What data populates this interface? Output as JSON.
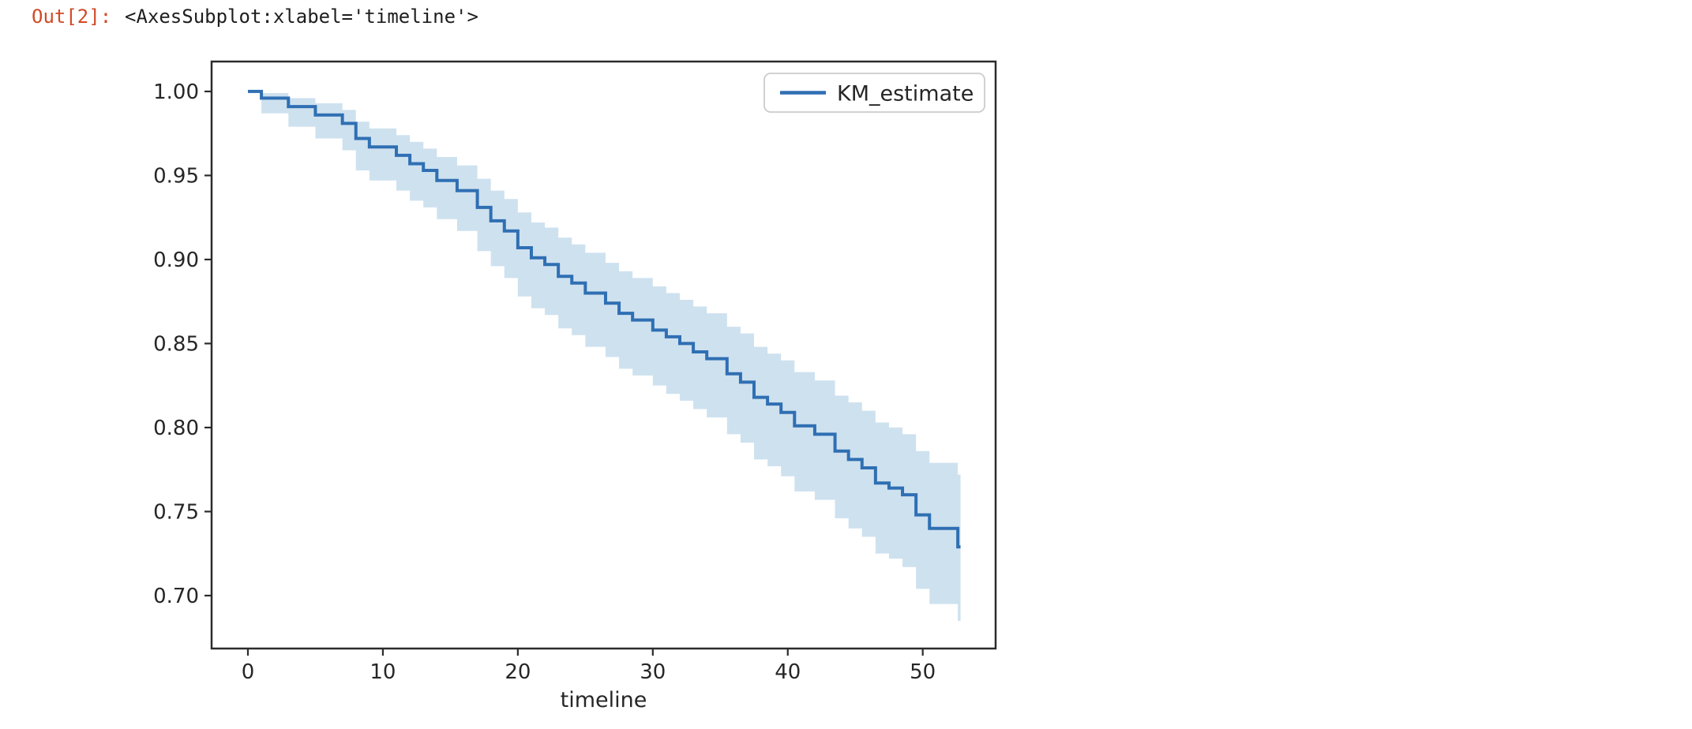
{
  "notebook": {
    "out_prompt": "Out[2]:",
    "repr_text": "<AxesSubplot:xlabel='timeline'>"
  },
  "colors": {
    "background": "#ffffff",
    "prompt": "#d04a26",
    "text": "#1e1e1e",
    "spine": "#2b2b2b",
    "tick": "#2b2b2b",
    "label": "#262626",
    "legend_border": "#cccccc"
  },
  "chart_data": {
    "type": "line",
    "subtype": "kaplan-meier-step",
    "title": "",
    "xlabel": "timeline",
    "ylabel": "",
    "grid": false,
    "legend": {
      "position": "upper right",
      "entries": [
        "KM_estimate"
      ]
    },
    "xlim": [
      -2.69,
      55.4
    ],
    "ylim": [
      0.6685,
      1.0178
    ],
    "x_ticks": [
      0,
      10,
      20,
      30,
      40,
      50
    ],
    "y_ticks": [
      1.0,
      0.95,
      0.9,
      0.85,
      0.8,
      0.75,
      0.7
    ],
    "x_end": 52.8,
    "series": [
      {
        "name": "KM_estimate",
        "color": "#2f6fb3",
        "band_color": "#1f77b4",
        "band_opacity": 0.22,
        "x": [
          0,
          1,
          3,
          5,
          7,
          8,
          9,
          11,
          12,
          13,
          14,
          15.5,
          17,
          18,
          19,
          20,
          21,
          22,
          23,
          24,
          25,
          26.5,
          27.5,
          28.5,
          30,
          31,
          32,
          33,
          34,
          35.5,
          36.5,
          37.5,
          38.5,
          39.5,
          40.5,
          42,
          43.5,
          44.5,
          45.5,
          46.5,
          47.5,
          48.5,
          49.5,
          50.5,
          52.6
        ],
        "y": [
          1.0,
          0.996,
          0.991,
          0.986,
          0.981,
          0.972,
          0.967,
          0.962,
          0.957,
          0.953,
          0.947,
          0.941,
          0.931,
          0.923,
          0.917,
          0.907,
          0.901,
          0.897,
          0.89,
          0.886,
          0.88,
          0.874,
          0.868,
          0.864,
          0.858,
          0.854,
          0.85,
          0.845,
          0.841,
          0.832,
          0.827,
          0.818,
          0.814,
          0.809,
          0.801,
          0.796,
          0.786,
          0.781,
          0.776,
          0.767,
          0.764,
          0.76,
          0.748,
          0.74,
          0.729
        ],
        "ci_upper": [
          1.0,
          0.999,
          0.996,
          0.993,
          0.989,
          0.982,
          0.978,
          0.974,
          0.97,
          0.966,
          0.961,
          0.956,
          0.948,
          0.941,
          0.936,
          0.928,
          0.922,
          0.919,
          0.913,
          0.909,
          0.904,
          0.898,
          0.893,
          0.889,
          0.884,
          0.88,
          0.876,
          0.872,
          0.868,
          0.86,
          0.856,
          0.848,
          0.844,
          0.84,
          0.833,
          0.828,
          0.819,
          0.815,
          0.81,
          0.803,
          0.8,
          0.796,
          0.786,
          0.779,
          0.772
        ],
        "ci_lower": [
          1.0,
          0.987,
          0.979,
          0.972,
          0.965,
          0.953,
          0.947,
          0.941,
          0.935,
          0.931,
          0.924,
          0.917,
          0.905,
          0.896,
          0.889,
          0.878,
          0.871,
          0.867,
          0.859,
          0.855,
          0.848,
          0.842,
          0.835,
          0.831,
          0.825,
          0.82,
          0.816,
          0.811,
          0.806,
          0.796,
          0.791,
          0.781,
          0.777,
          0.771,
          0.762,
          0.757,
          0.746,
          0.74,
          0.735,
          0.725,
          0.722,
          0.717,
          0.704,
          0.695,
          0.685
        ]
      }
    ]
  }
}
